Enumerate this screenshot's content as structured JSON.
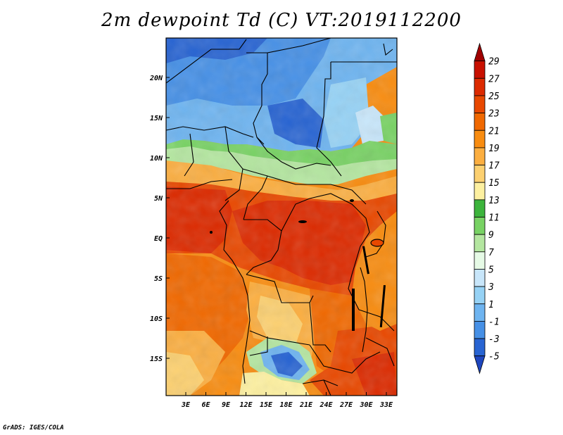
{
  "title": "2m dewpoint Td (C) VT:2019112200",
  "credit": "GrADS: IGES/COLA",
  "lat_ticks": [
    "20N",
    "15N",
    "10N",
    "5N",
    "EQ",
    "5S",
    "10S",
    "15S"
  ],
  "lon_ticks": [
    "3E",
    "6E",
    "9E",
    "12E",
    "15E",
    "18E",
    "21E",
    "24E",
    "27E",
    "30E",
    "33E"
  ],
  "colorbar": {
    "labels": [
      "29",
      "27",
      "25",
      "23",
      "21",
      "19",
      "17",
      "15",
      "13",
      "11",
      "9",
      "7",
      "5",
      "3",
      "1",
      "-1",
      "-3",
      "-5"
    ],
    "colors": [
      "#a00000",
      "#c81000",
      "#dc2a00",
      "#e84800",
      "#f06800",
      "#f88c10",
      "#fbae40",
      "#fcd070",
      "#fdf0a0",
      "#3cb43c",
      "#78d264",
      "#b4e6a0",
      "#e6fae6",
      "#c8e6fa",
      "#96d2f5",
      "#6eb4f0",
      "#4690e6",
      "#2864d2",
      "#1e46be"
    ]
  },
  "map": {
    "lon_range": [
      0,
      35
    ],
    "lat_range": [
      -20,
      25
    ]
  }
}
